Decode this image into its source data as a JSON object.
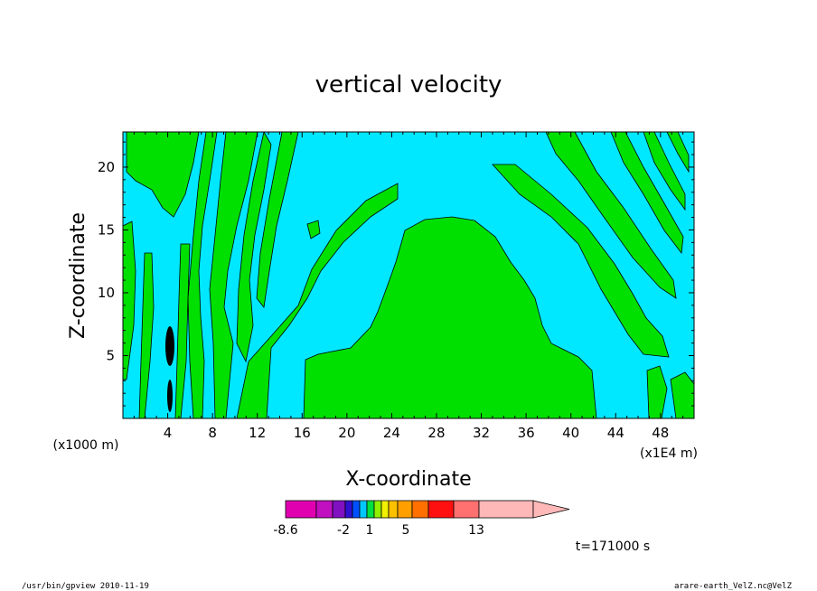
{
  "chart_data": {
    "type": "heatmap",
    "title": "vertical velocity",
    "xlabel": "X-coordinate",
    "ylabel": "Z-coordinate",
    "x_unit_left": "(x1000 m)",
    "x_unit_right": "(x1E4 m)",
    "xlim": [
      0,
      51
    ],
    "ylim": [
      0,
      22.8
    ],
    "x_ticks": [
      "4",
      "8",
      "12",
      "16",
      "20",
      "24",
      "28",
      "32",
      "36",
      "40",
      "44",
      "48"
    ],
    "y_ticks": [
      "5",
      "10",
      "15",
      "20"
    ],
    "colorbar": {
      "colors": [
        "#e000b0",
        "#c010c0",
        "#8010c0",
        "#3010d0",
        "#0050ff",
        "#00c8ff",
        "#00e040",
        "#90f000",
        "#f0f000",
        "#ffc000",
        "#ffa000",
        "#ff7000",
        "#ff1010",
        "#ff7070",
        "#ffb8b8"
      ],
      "labels": [
        "-8.6",
        "-2",
        "1",
        "5",
        "13"
      ],
      "extend": "max"
    },
    "time_label": "t=171000 s",
    "fill_colors": {
      "negative": "#00e8ff",
      "positive": "#00e000"
    }
  },
  "footer": {
    "left": "/usr/bin/gpview   2010-11-19",
    "right": "arare-earth_VelZ.nc@VelZ"
  }
}
